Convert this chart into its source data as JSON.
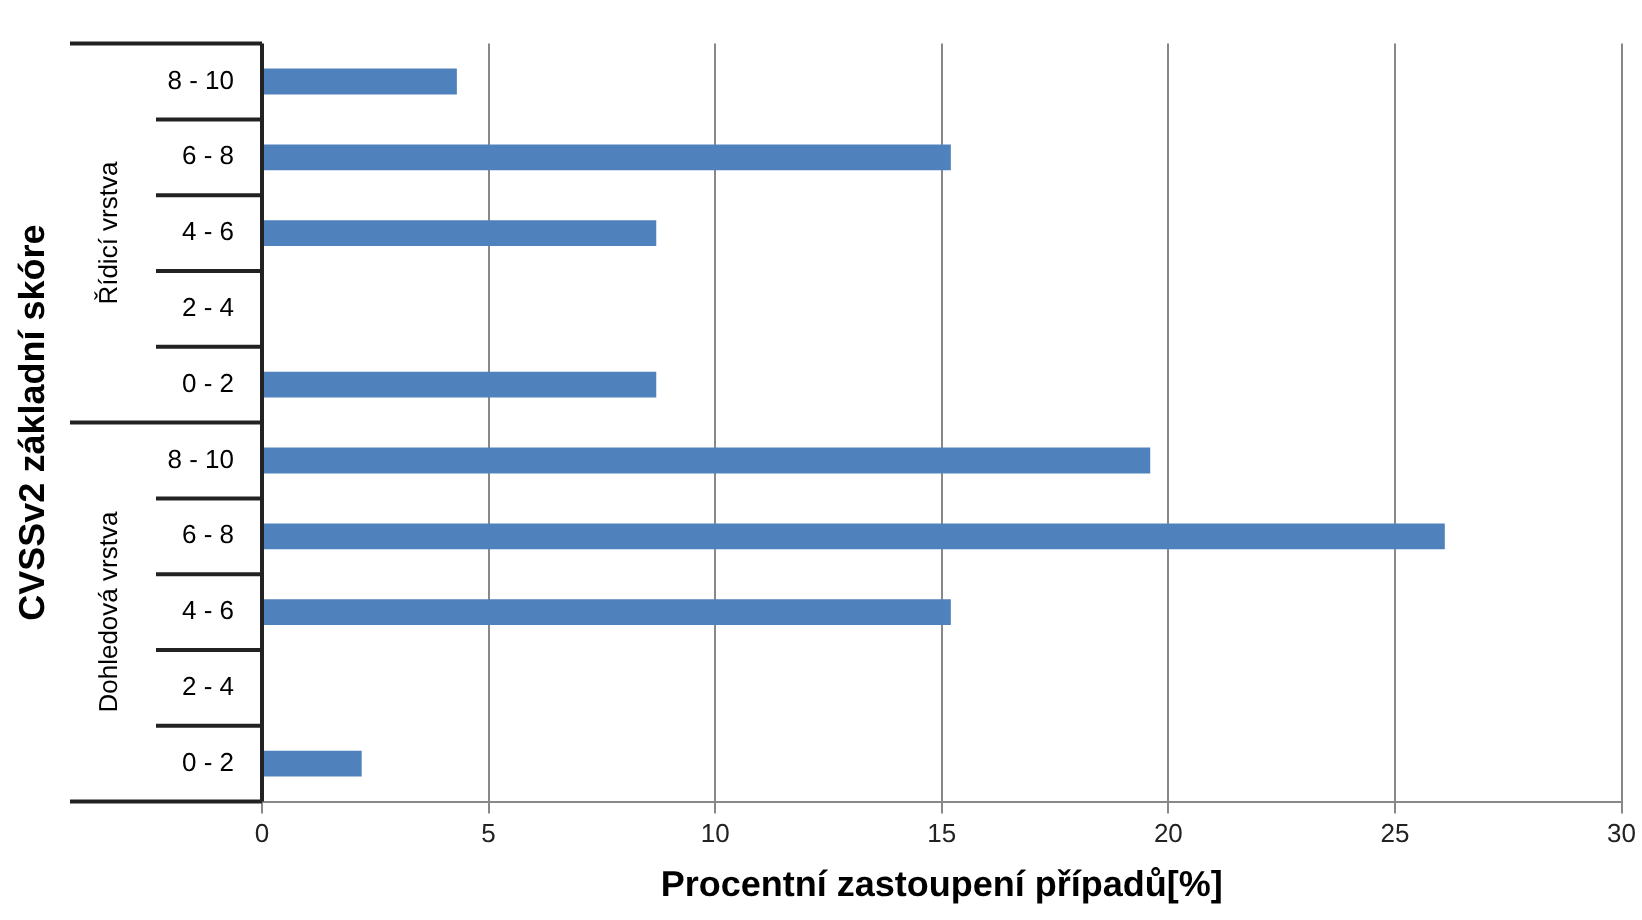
{
  "chart_data": {
    "type": "bar",
    "orientation": "horizontal",
    "xlabel": "Procentní zastoupení případů[%]",
    "ylabel": "CVSSv2 základní skóre",
    "categories": [
      "8 - 10",
      "6 - 8",
      "4 - 6",
      "2 - 4",
      "0 - 2",
      "8 - 10",
      "6 - 8",
      "4 - 6",
      "2 - 4",
      "0 - 2"
    ],
    "values": [
      4.3,
      15.2,
      8.7,
      0,
      8.7,
      19.6,
      26.1,
      15.2,
      0,
      2.2
    ],
    "color": "#4f81bd",
    "xlim": [
      0,
      30
    ],
    "xticks": [
      0,
      5,
      10,
      15,
      20,
      25,
      30
    ],
    "grid": "x",
    "legend": false,
    "annotations": [
      "Řídicí vrstva",
      "Dohledová vrstva"
    ]
  }
}
